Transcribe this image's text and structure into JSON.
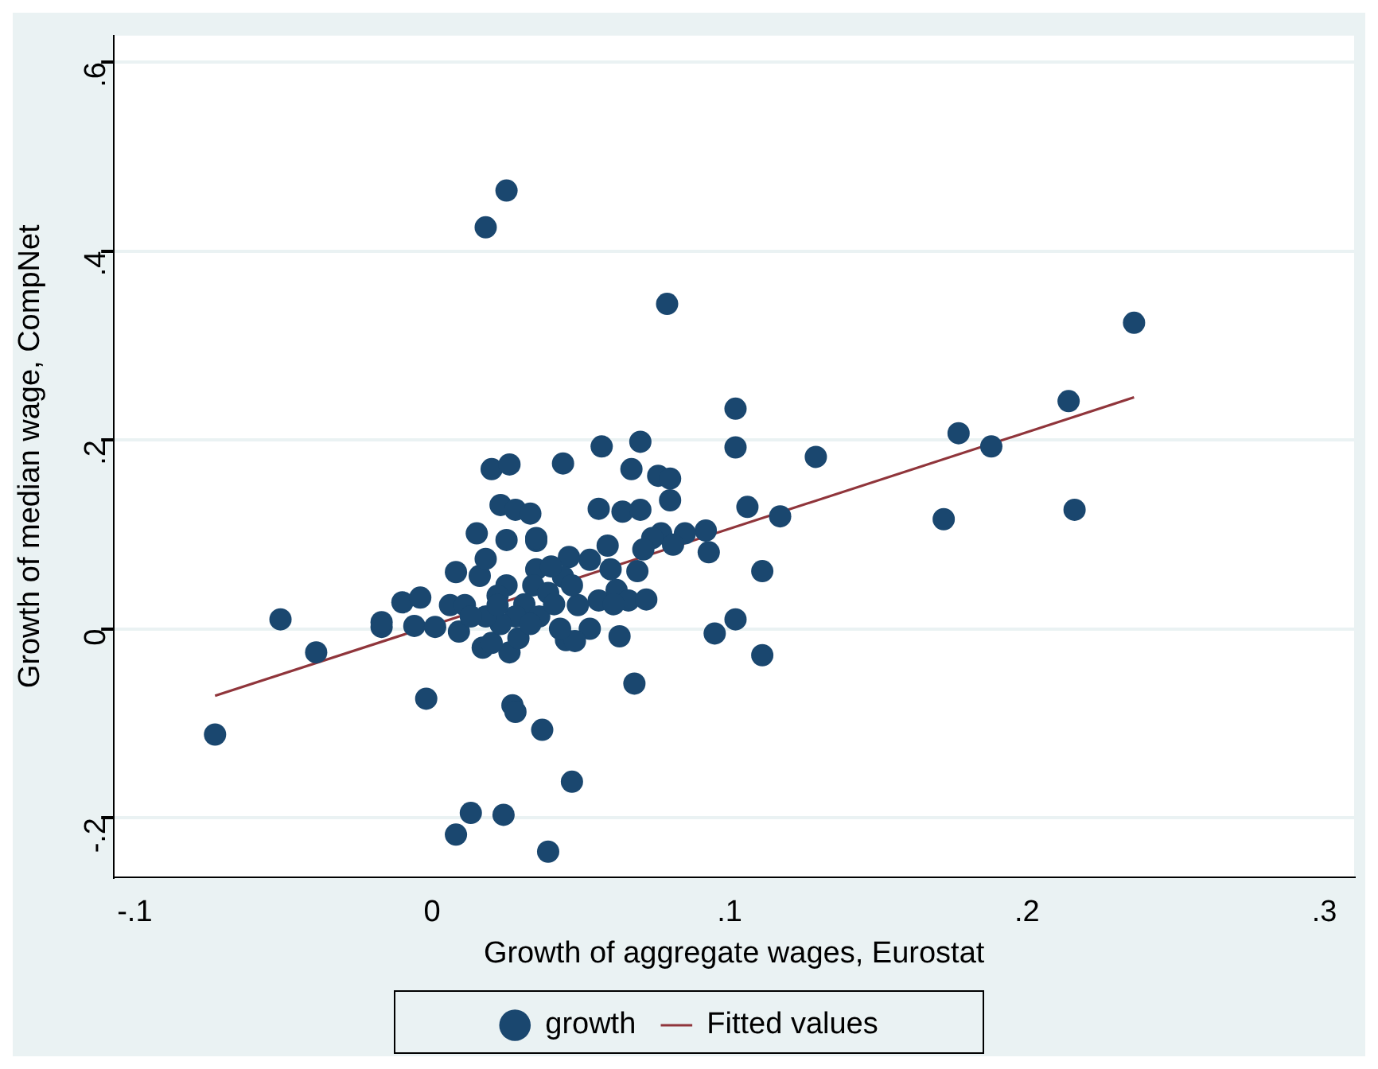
{
  "chart_data": {
    "type": "scatter",
    "xlabel": "Growth of aggregate wages, Eurostat",
    "ylabel": "Growth of median wage, CompNet",
    "xlim": [
      -0.107,
      0.31
    ],
    "ylim": [
      -0.263,
      0.628
    ],
    "xticks": [
      {
        "value": -0.1,
        "label": "-.1"
      },
      0,
      {
        "value": 0.1,
        "label": ".1"
      },
      {
        "value": 0.2,
        "label": ".2"
      },
      {
        "value": 0.3,
        "label": ".3"
      }
    ],
    "yticks": [
      {
        "value": -0.2,
        "label": "-.2"
      },
      0,
      {
        "value": 0.2,
        "label": ".2"
      },
      {
        "value": 0.4,
        "label": ".4"
      },
      {
        "value": 0.6,
        "label": ".6"
      }
    ],
    "grid": "y",
    "legend": "bottom",
    "marker": "circle",
    "series": [
      {
        "name": "growth",
        "color": "#1a476f",
        "x": [
          -0.073,
          -0.051,
          -0.039,
          -0.017,
          -0.017,
          -0.01,
          -0.004,
          -0.002,
          -0.006,
          0.001,
          0.006,
          0.011,
          0.009,
          0.017,
          0.026,
          0.029,
          0.02,
          0.025,
          0.035,
          0.022,
          0.008,
          0.016,
          0.018,
          0.015,
          0.025,
          0.035,
          0.02,
          0.026,
          0.023,
          0.028,
          0.033,
          0.018,
          0.025,
          0.044,
          0.057,
          0.07,
          0.067,
          0.076,
          0.08,
          0.08,
          0.079,
          0.056,
          0.064,
          0.07,
          0.102,
          0.102,
          0.129,
          0.106,
          0.117,
          0.092,
          0.093,
          0.085,
          0.077,
          0.074,
          0.071,
          0.081,
          0.059,
          0.053,
          0.046,
          0.06,
          0.069,
          0.111,
          0.035,
          0.056,
          0.062,
          0.066,
          0.072,
          0.061,
          0.049,
          0.053,
          0.063,
          0.045,
          0.048,
          0.068,
          0.095,
          0.102,
          0.111,
          0.172,
          0.177,
          0.188,
          0.214,
          0.216,
          0.236,
          0.008,
          0.013,
          0.024,
          0.039,
          0.047,
          0.037,
          0.027,
          0.028,
          0.034,
          0.039,
          0.031,
          0.036,
          0.041,
          0.028,
          0.023,
          0.018,
          0.044,
          0.04,
          0.047,
          0.033,
          0.022,
          0.043,
          0.013
        ],
        "values": [
          -0.112,
          0.01,
          -0.025,
          0.002,
          0.007,
          0.028,
          0.033,
          -0.074,
          0.003,
          0.002,
          0.025,
          0.025,
          -0.003,
          -0.02,
          -0.025,
          -0.01,
          -0.015,
          0.046,
          0.063,
          0.035,
          0.06,
          0.056,
          0.074,
          0.101,
          0.094,
          0.093,
          0.169,
          0.174,
          0.131,
          0.126,
          0.122,
          0.425,
          0.464,
          0.175,
          0.193,
          0.198,
          0.169,
          0.162,
          0.159,
          0.136,
          0.344,
          0.127,
          0.124,
          0.126,
          0.233,
          0.192,
          0.182,
          0.129,
          0.119,
          0.104,
          0.081,
          0.101,
          0.101,
          0.096,
          0.084,
          0.089,
          0.088,
          0.073,
          0.076,
          0.063,
          0.061,
          0.061,
          0.096,
          0.03,
          0.041,
          0.03,
          0.031,
          0.026,
          0.025,
          0.0,
          -0.008,
          -0.012,
          -0.013,
          -0.058,
          -0.005,
          0.01,
          -0.028,
          0.116,
          0.207,
          0.193,
          0.241,
          0.126,
          0.324,
          -0.218,
          -0.195,
          -0.197,
          -0.236,
          -0.162,
          -0.107,
          -0.081,
          -0.088,
          0.046,
          0.038,
          0.026,
          0.013,
          0.026,
          0.013,
          0.005,
          0.013,
          0.055,
          0.066,
          0.046,
          0.005,
          0.025,
          0.0,
          0.013
        ]
      },
      {
        "name": "Fitted values",
        "type": "line",
        "color": "#90353b",
        "marker": "none",
        "x": [
          -0.073,
          0.236
        ],
        "values": [
          -0.071,
          0.245
        ]
      }
    ]
  }
}
